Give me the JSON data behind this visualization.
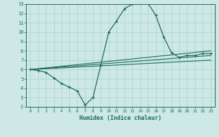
{
  "title": "",
  "xlabel": "Humidex (Indice chaleur)",
  "xlim": [
    -0.5,
    23.5
  ],
  "ylim": [
    2,
    13
  ],
  "xticks": [
    0,
    1,
    2,
    3,
    4,
    5,
    6,
    7,
    8,
    9,
    10,
    11,
    12,
    13,
    14,
    15,
    16,
    17,
    18,
    19,
    20,
    21,
    22,
    23
  ],
  "yticks": [
    2,
    3,
    4,
    5,
    6,
    7,
    8,
    9,
    10,
    11,
    12,
    13
  ],
  "background_color": "#cde8e5",
  "plot_bg_color": "#cde8e5",
  "line_color": "#1a6b5a",
  "grid_color": "#aed4cf",
  "line1_x": [
    0,
    1,
    2,
    3,
    4,
    5,
    6,
    7,
    8,
    9,
    10,
    11,
    12,
    13,
    14,
    15,
    16,
    17,
    18,
    19,
    20,
    21,
    22,
    23
  ],
  "line1_y": [
    6.0,
    5.9,
    5.7,
    5.1,
    4.5,
    4.1,
    3.7,
    2.2,
    3.0,
    6.5,
    10.0,
    11.2,
    12.5,
    13.0,
    13.1,
    13.1,
    11.8,
    9.5,
    7.8,
    7.3,
    7.5,
    7.5,
    7.7,
    7.7
  ],
  "line2_x": [
    0,
    23
  ],
  "line2_y": [
    6.0,
    8.0
  ],
  "line3_x": [
    0,
    23
  ],
  "line3_y": [
    6.0,
    7.5
  ],
  "line4_x": [
    0,
    23
  ],
  "line4_y": [
    6.0,
    7.0
  ]
}
